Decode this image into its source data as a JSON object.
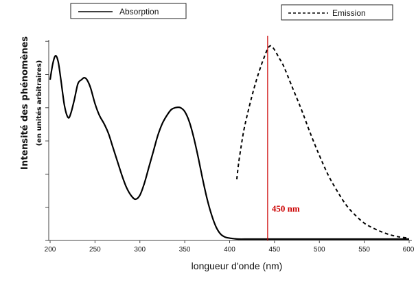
{
  "chart_data": {
    "type": "line",
    "xlabel": "longueur d'onde (nm)",
    "ylabel": "Intensité des phénomènes",
    "ylabel_sub": "(en unités arbitraires)",
    "xlim": [
      200,
      600
    ],
    "ylim": [
      0,
      1.0
    ],
    "x_ticks": [
      "200",
      "250",
      "300",
      "350",
      "400",
      "450",
      "500",
      "550",
      "600"
    ],
    "y_ticks_labeled": false,
    "grid": false,
    "legend_placement": "top",
    "series": [
      {
        "name": "Absorption",
        "style": "solid",
        "color": "#000000",
        "x": [
          200,
          203,
          206,
          209,
          212,
          216,
          220,
          223,
          227,
          231,
          235,
          238,
          241,
          245,
          250,
          255,
          260,
          265,
          270,
          275,
          280,
          285,
          290,
          295,
          300,
          305,
          310,
          315,
          320,
          325,
          330,
          335,
          340,
          345,
          350,
          355,
          360,
          365,
          370,
          375,
          380,
          385,
          390,
          395,
          400,
          405,
          410,
          420,
          430,
          440,
          450,
          500,
          550,
          600
        ],
        "y": [
          0.8,
          0.88,
          0.92,
          0.89,
          0.8,
          0.67,
          0.61,
          0.63,
          0.7,
          0.78,
          0.8,
          0.81,
          0.8,
          0.76,
          0.68,
          0.62,
          0.58,
          0.53,
          0.46,
          0.39,
          0.32,
          0.26,
          0.22,
          0.2,
          0.22,
          0.28,
          0.36,
          0.44,
          0.52,
          0.58,
          0.62,
          0.65,
          0.66,
          0.66,
          0.64,
          0.59,
          0.51,
          0.41,
          0.3,
          0.2,
          0.12,
          0.06,
          0.025,
          0.01,
          0.005,
          0.002,
          0.0,
          0.0,
          0.0,
          0.0,
          0.0,
          0.0,
          0.0,
          0.0
        ]
      },
      {
        "name": "Emission",
        "style": "dashed",
        "color": "#000000",
        "x": [
          408,
          410,
          413,
          416,
          420,
          425,
          430,
          435,
          440,
          443,
          446,
          450,
          455,
          460,
          470,
          480,
          490,
          500,
          510,
          520,
          530,
          540,
          550,
          560,
          570,
          580,
          590,
          600
        ],
        "y": [
          0.3,
          0.38,
          0.47,
          0.55,
          0.63,
          0.72,
          0.8,
          0.87,
          0.93,
          0.96,
          0.97,
          0.95,
          0.91,
          0.87,
          0.76,
          0.65,
          0.53,
          0.42,
          0.32,
          0.24,
          0.17,
          0.12,
          0.08,
          0.055,
          0.035,
          0.02,
          0.01,
          0.005
        ]
      }
    ],
    "marker": {
      "x": 450,
      "label": "450 nm",
      "color": "#cc0000"
    }
  }
}
